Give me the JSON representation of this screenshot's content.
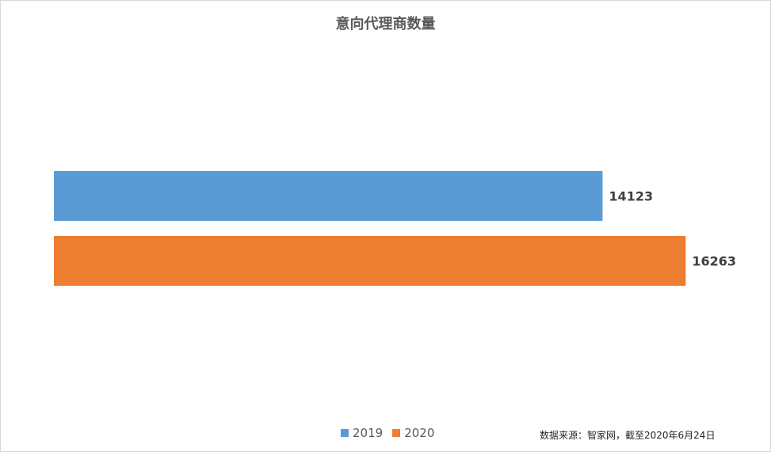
{
  "chart_data": {
    "type": "bar",
    "orientation": "horizontal",
    "title": "意向代理商数量",
    "xlabel": "",
    "ylabel": "",
    "xlim": [
      0,
      17500
    ],
    "grid": false,
    "legend_position": "bottom",
    "series": [
      {
        "name": "2019",
        "values": [
          14123
        ],
        "color": "#5b9bd5"
      },
      {
        "name": "2020",
        "values": [
          16263
        ],
        "color": "#ed7d31"
      }
    ],
    "data_labels": [
      "14123",
      "16263"
    ]
  },
  "legend": [
    {
      "label": "2019",
      "color": "#5b9bd5"
    },
    {
      "label": "2020",
      "color": "#ed7d31"
    }
  ],
  "source_note": "数据来源：智家网，截至2020年6月24日"
}
